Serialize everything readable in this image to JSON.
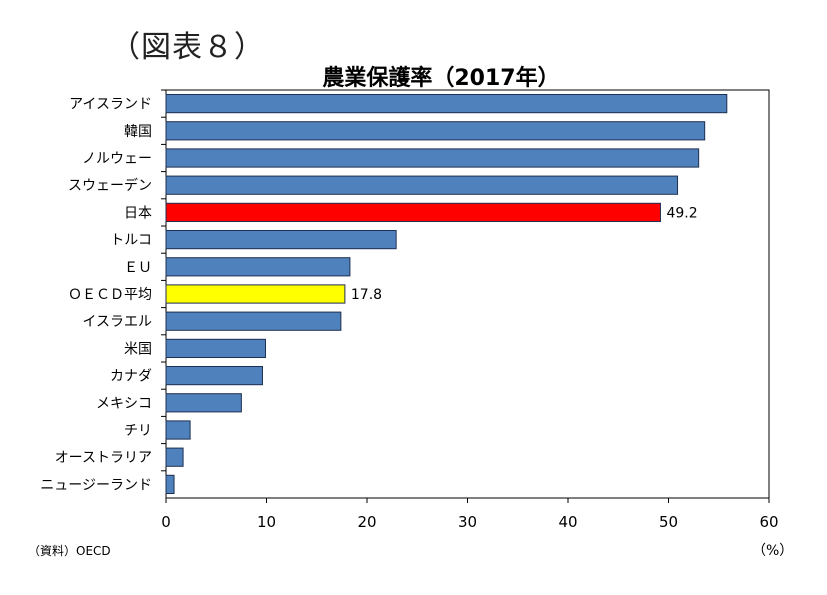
{
  "figure_label": "（図表８）",
  "source": "（資料）OECD",
  "unit": "（%）",
  "chart_data": {
    "type": "bar",
    "orientation": "horizontal",
    "title": "農業保護率（2017年）",
    "categories": [
      "アイスランド",
      "韓国",
      "ノルウェー",
      "スウェーデン",
      "日本",
      "トルコ",
      "ＥＵ",
      "ＯＥＣＤ平均",
      "イスラエル",
      "米国",
      "カナダ",
      "メキシコ",
      "チリ",
      "オーストラリア",
      "ニュージーランド"
    ],
    "values": [
      55.8,
      53.6,
      53.0,
      50.9,
      49.2,
      22.9,
      18.3,
      17.8,
      17.4,
      9.9,
      9.6,
      7.5,
      2.4,
      1.7,
      0.8
    ],
    "bar_colors": [
      "#4f81bd",
      "#4f81bd",
      "#4f81bd",
      "#4f81bd",
      "#ff0000",
      "#4f81bd",
      "#4f81bd",
      "#ffff00",
      "#4f81bd",
      "#4f81bd",
      "#4f81bd",
      "#4f81bd",
      "#4f81bd",
      "#4f81bd",
      "#4f81bd"
    ],
    "data_labels": {
      "日本": "49.2",
      "ＯＥＣＤ平均": "17.8"
    },
    "xlim": [
      0,
      60
    ],
    "xticks": [
      0,
      10,
      20,
      30,
      40,
      50,
      60
    ],
    "grid": false,
    "legend": "none"
  }
}
